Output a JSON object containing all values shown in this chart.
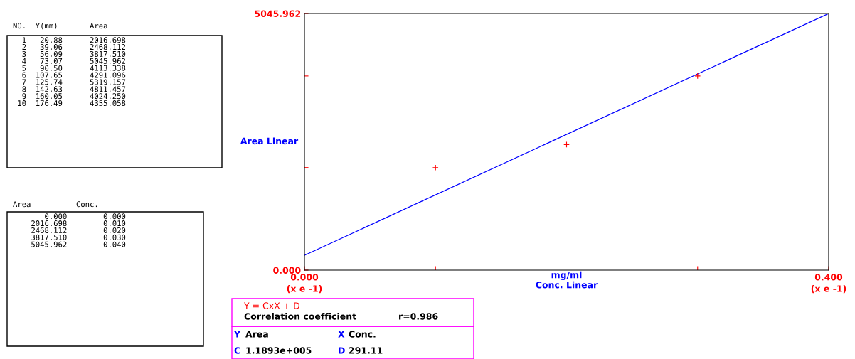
{
  "chart_data": {
    "type": "scatter",
    "xlabel": "mg/ml\nConc. Linear",
    "ylabel": "Area Linear",
    "xlim": [
      0,
      0.4
    ],
    "ylim": [
      0,
      5045.962
    ],
    "xticks": [
      {
        "value": 0,
        "label": "0.000"
      },
      {
        "value": 0.1,
        "label": null
      },
      {
        "value": 0.3,
        "label": null
      },
      {
        "value": 0.4,
        "label": "0.400"
      }
    ],
    "yticks": [
      {
        "value": 0,
        "label": "0.000"
      },
      {
        "value": 2016.698,
        "label": null
      },
      {
        "value": 3817.51,
        "label": null
      },
      {
        "value": 5045.962,
        "label": "5045.962"
      }
    ],
    "marker": "cross",
    "grid": false,
    "legend": false,
    "series": [
      {
        "color": "#ff0000",
        "x": [
          0.1,
          0.2,
          0.3
        ],
        "values": [
          2016.698,
          2468.112,
          3817.51
        ]
      },
      {
        "type": "line",
        "color": "#0000ff",
        "marker": "none",
        "x": [
          0,
          0.4
        ],
        "values": [
          291.11,
          5045.962
        ]
      }
    ],
    "annotations": [
      "NO.  Y(mm)       Area",
      "  1   20.88      2016.698\n  2   39.06      2468.112\n  3   56.09      3817.510\n  4   73.07      5045.962\n  5   90.50      4113.338\n  6  107.65      4291.096\n  7  125.74      5319.157\n  8  142.63      4811.457\n  9  160.05      4024.250\n 10  176.49      4355.058",
      "Area          Conc.",
      "       0.000        0.000\n    2016.698        0.010\n    2468.112        0.020\n    3817.510        0.030\n    5045.962        0.040",
      "Y = CxX + D",
      "Correlation coefficient",
      "r=0.986",
      "Y",
      "Area",
      "X",
      "Conc.",
      "C",
      "1.1893e+005",
      "D",
      "291.11",
      "(x e -1)",
      "(x e -1)"
    ]
  }
}
